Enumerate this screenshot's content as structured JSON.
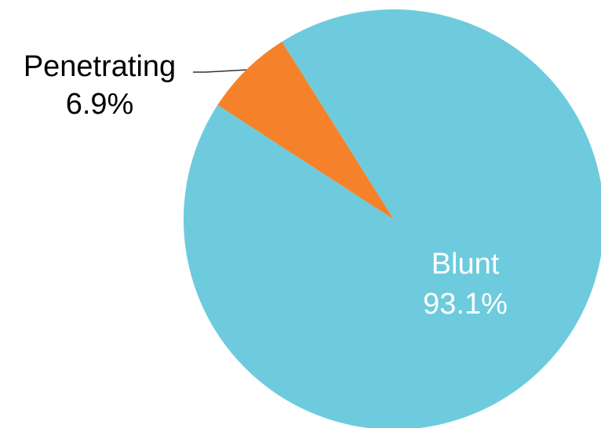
{
  "chart_data": {
    "type": "pie",
    "slices": [
      {
        "label": "Penetrating",
        "value": 6.9,
        "value_label": "6.9%",
        "color": "#F5822A",
        "label_color": "#000000"
      },
      {
        "label": "Blunt",
        "value": 93.1,
        "value_label": "93.1%",
        "color": "#6DCBDD",
        "label_color": "#ffffff"
      }
    ],
    "start_angle_deg": -57,
    "legend": "none"
  }
}
